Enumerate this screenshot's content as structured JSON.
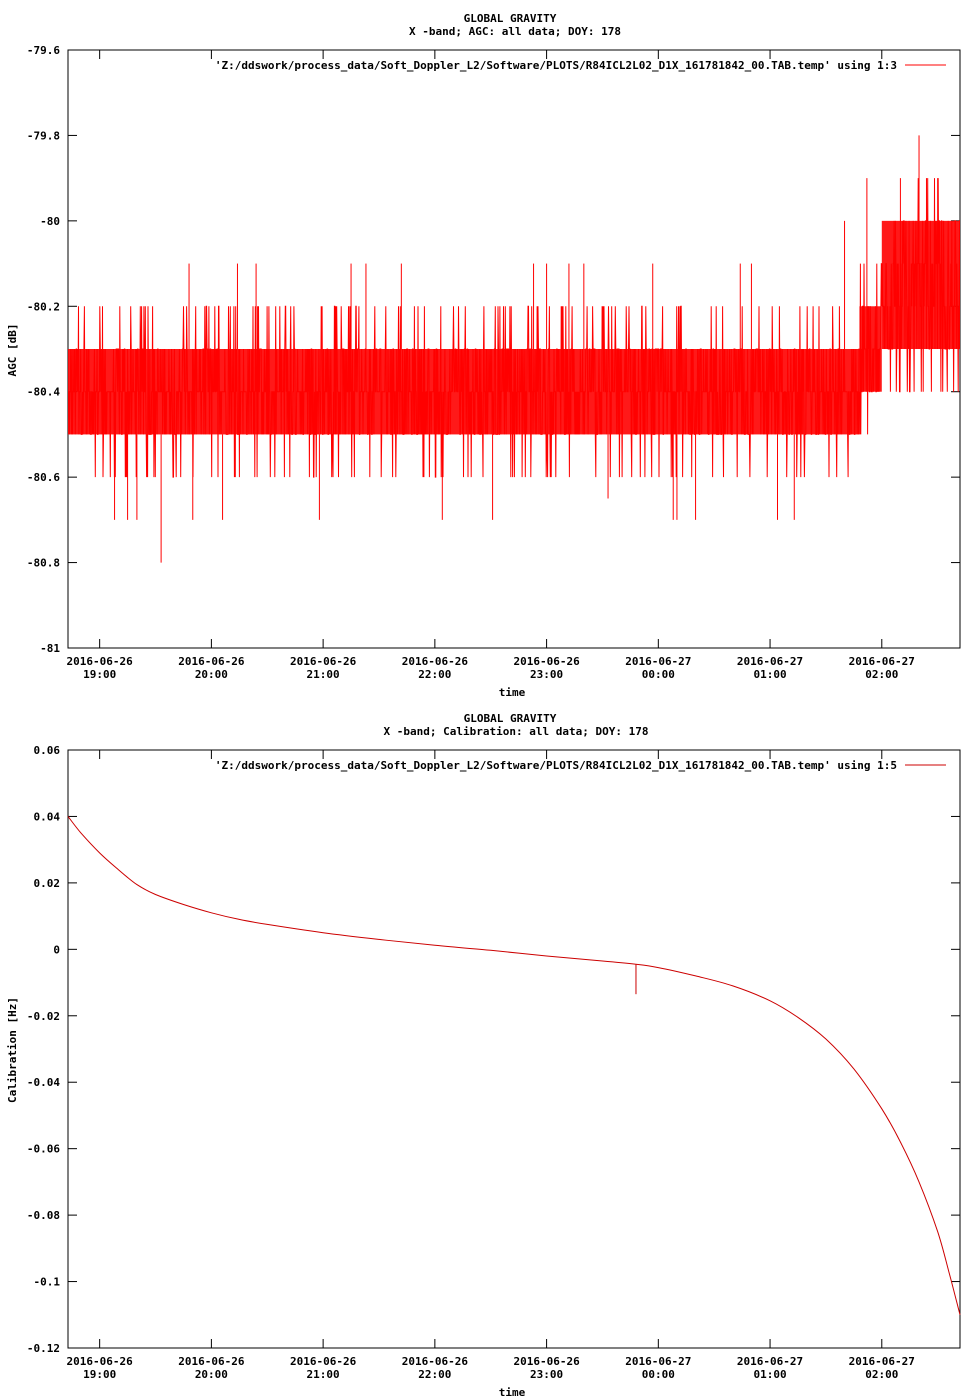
{
  "chart_data": [
    {
      "type": "line",
      "title": "GLOBAL GRAVITY",
      "subtitle": "X -band; AGC: all data; DOY: 178",
      "xlabel": "time",
      "ylabel": "AGC [dB]",
      "legend": "'Z:/ddswork/process_data/Soft_Doppler_L2/Software/PLOTS/R84ICL2L02_D1X_161781842_00.TAB.temp' using 1:3",
      "legend_position": "top-right",
      "color": "#ff0000",
      "grid": false,
      "xlim": [
        "2016-06-26 18:43",
        "2016-06-27 02:42"
      ],
      "ylim": [
        -81,
        -79.6
      ],
      "yticks": [
        -79.6,
        -79.8,
        -80,
        -80.2,
        -80.4,
        -80.6,
        -80.8,
        -81
      ],
      "ytick_labels": [
        "-79.6",
        "-79.8",
        "-80",
        "-80.2",
        "-80.4",
        "-80.6",
        "-80.8",
        "-81"
      ],
      "xticks": [
        {
          "date": "2016-06-26",
          "time": "19:00",
          "at": "2016-06-26 19:00"
        },
        {
          "date": "2016-06-26",
          "time": "20:00",
          "at": "2016-06-26 20:00"
        },
        {
          "date": "2016-06-26",
          "time": "21:00",
          "at": "2016-06-26 21:00"
        },
        {
          "date": "2016-06-26",
          "time": "22:00",
          "at": "2016-06-26 22:00"
        },
        {
          "date": "2016-06-26",
          "time": "23:00",
          "at": "2016-06-26 23:00"
        },
        {
          "date": "2016-06-27",
          "time": "00:00",
          "at": "2016-06-27 00:00"
        },
        {
          "date": "2016-06-27",
          "time": "01:00",
          "at": "2016-06-27 01:00"
        },
        {
          "date": "2016-06-27",
          "time": "02:00",
          "at": "2016-06-27 02:00"
        }
      ],
      "segments": [
        {
          "from": "2016-06-26 18:43",
          "to": "2016-06-27 01:48",
          "band_low": -80.5,
          "band_high": -80.3
        },
        {
          "from": "2016-06-27 01:48",
          "to": "2016-06-27 02:00",
          "band_low": -80.4,
          "band_high": -80.2
        },
        {
          "from": "2016-06-27 02:00",
          "to": "2016-06-27 02:42",
          "band_low": -80.3,
          "band_high": -80.0
        }
      ],
      "spikes": [
        {
          "x": "2016-06-26 19:08",
          "y": -80.7
        },
        {
          "x": "2016-06-26 19:15",
          "y": -80.7
        },
        {
          "x": "2016-06-26 19:20",
          "y": -80.7
        },
        {
          "x": "2016-06-26 19:33",
          "y": -80.8
        },
        {
          "x": "2016-06-26 19:48",
          "y": -80.1
        },
        {
          "x": "2016-06-26 19:50",
          "y": -80.7
        },
        {
          "x": "2016-06-26 20:06",
          "y": -80.7
        },
        {
          "x": "2016-06-26 20:14",
          "y": -80.1
        },
        {
          "x": "2016-06-26 20:24",
          "y": -80.1
        },
        {
          "x": "2016-06-26 20:58",
          "y": -80.7
        },
        {
          "x": "2016-06-26 21:15",
          "y": -80.1
        },
        {
          "x": "2016-06-26 21:23",
          "y": -80.1
        },
        {
          "x": "2016-06-26 21:42",
          "y": -80.1
        },
        {
          "x": "2016-06-26 22:04",
          "y": -80.7
        },
        {
          "x": "2016-06-26 22:31",
          "y": -80.7
        },
        {
          "x": "2016-06-26 22:53",
          "y": -80.1
        },
        {
          "x": "2016-06-26 23:00",
          "y": -80.1
        },
        {
          "x": "2016-06-26 23:12",
          "y": -80.1
        },
        {
          "x": "2016-06-26 23:20",
          "y": -80.1
        },
        {
          "x": "2016-06-26 23:33",
          "y": -80.65
        },
        {
          "x": "2016-06-26 23:57",
          "y": -80.1
        },
        {
          "x": "2016-06-27 00:08",
          "y": -80.7
        },
        {
          "x": "2016-06-27 00:10",
          "y": -80.7
        },
        {
          "x": "2016-06-27 00:20",
          "y": -80.7
        },
        {
          "x": "2016-06-27 00:44",
          "y": -80.1
        },
        {
          "x": "2016-06-27 00:50",
          "y": -80.1
        },
        {
          "x": "2016-06-27 01:04",
          "y": -80.7
        },
        {
          "x": "2016-06-27 01:13",
          "y": -80.7
        },
        {
          "x": "2016-06-27 01:40",
          "y": -80.0
        },
        {
          "x": "2016-06-27 01:52",
          "y": -79.9
        },
        {
          "x": "2016-06-27 02:10",
          "y": -79.9
        },
        {
          "x": "2016-06-27 02:14",
          "y": -80.5
        },
        {
          "x": "2016-06-27 02:20",
          "y": -79.8
        },
        {
          "x": "2016-06-27 02:24",
          "y": -79.9
        },
        {
          "x": "2016-06-27 02:30",
          "y": -79.9
        },
        {
          "x": "2016-06-27 02:34",
          "y": -80.5
        }
      ]
    },
    {
      "type": "line",
      "title": "GLOBAL GRAVITY",
      "subtitle": "X -band; Calibration: all data; DOY: 178",
      "xlabel": "time",
      "ylabel": "Calibration [Hz]",
      "legend": "'Z:/ddswork/process_data/Soft_Doppler_L2/Software/PLOTS/R84ICL2L02_D1X_161781842_00.TAB.temp' using 1:5",
      "legend_position": "top-right",
      "color": "#cc0000",
      "grid": false,
      "xlim": [
        "2016-06-26 18:43",
        "2016-06-27 02:42"
      ],
      "ylim": [
        -0.12,
        0.06
      ],
      "yticks": [
        0.06,
        0.04,
        0.02,
        0,
        -0.02,
        -0.04,
        -0.06,
        -0.08,
        -0.1,
        -0.12
      ],
      "ytick_labels": [
        "0.06",
        "0.04",
        "0.02",
        "0",
        "-0.02",
        "-0.04",
        "-0.06",
        "-0.08",
        "-0.1",
        "-0.12"
      ],
      "xticks": [
        {
          "date": "2016-06-26",
          "time": "19:00",
          "at": "2016-06-26 19:00"
        },
        {
          "date": "2016-06-26",
          "time": "20:00",
          "at": "2016-06-26 20:00"
        },
        {
          "date": "2016-06-26",
          "time": "21:00",
          "at": "2016-06-26 21:00"
        },
        {
          "date": "2016-06-26",
          "time": "22:00",
          "at": "2016-06-26 22:00"
        },
        {
          "date": "2016-06-26",
          "time": "23:00",
          "at": "2016-06-26 23:00"
        },
        {
          "date": "2016-06-27",
          "time": "00:00",
          "at": "2016-06-27 00:00"
        },
        {
          "date": "2016-06-27",
          "time": "01:00",
          "at": "2016-06-27 01:00"
        },
        {
          "date": "2016-06-27",
          "time": "02:00",
          "at": "2016-06-27 02:00"
        }
      ],
      "series": [
        {
          "x": [
            "2016-06-26 18:43",
            "2016-06-26 18:50",
            "2016-06-26 19:00",
            "2016-06-26 19:10",
            "2016-06-26 19:20",
            "2016-06-26 19:30",
            "2016-06-26 19:45",
            "2016-06-26 20:00",
            "2016-06-26 20:15",
            "2016-06-26 20:30",
            "2016-06-26 21:00",
            "2016-06-26 21:30",
            "2016-06-26 22:00",
            "2016-06-26 22:30",
            "2016-06-26 23:00",
            "2016-06-26 23:30",
            "2016-06-26 23:48",
            "2016-06-27 00:00",
            "2016-06-27 00:20",
            "2016-06-27 00:40",
            "2016-06-27 01:00",
            "2016-06-27 01:15",
            "2016-06-27 01:30",
            "2016-06-27 01:45",
            "2016-06-27 02:00",
            "2016-06-27 02:10",
            "2016-06-27 02:20",
            "2016-06-27 02:30",
            "2016-06-27 02:36",
            "2016-06-27 02:42"
          ],
          "values": [
            0.04,
            0.035,
            0.029,
            0.024,
            0.0195,
            0.0165,
            0.0135,
            0.011,
            0.009,
            0.0075,
            0.005,
            0.003,
            0.0012,
            -0.0003,
            -0.002,
            -0.0035,
            -0.0045,
            -0.0055,
            -0.008,
            -0.011,
            -0.0155,
            -0.0205,
            -0.027,
            -0.036,
            -0.048,
            -0.058,
            -0.07,
            -0.085,
            -0.097,
            -0.11
          ]
        }
      ],
      "spikes": [
        {
          "x": "2016-06-26 23:48",
          "y": -0.0135
        }
      ]
    }
  ]
}
